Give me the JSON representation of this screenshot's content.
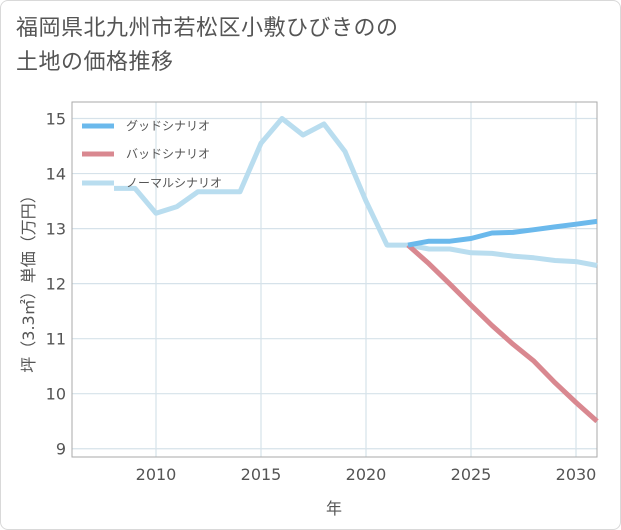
{
  "title": "福岡県北九州市若松区小敷ひびきのの\n土地の価格推移",
  "chart_data": {
    "type": "line",
    "title": "福岡県北九州市若松区小敷ひびきのの土地の価格推移",
    "xlabel": "年",
    "ylabel": "坪（3.3㎡）単価（万円）",
    "xlim": [
      2006,
      2031
    ],
    "ylim": [
      8.85,
      15.3
    ],
    "x_ticks": [
      2010,
      2015,
      2020,
      2025,
      2030
    ],
    "y_ticks": [
      9,
      10,
      11,
      12,
      13,
      14,
      15
    ],
    "grid": true,
    "legend_position": "top-left",
    "series": [
      {
        "name": "グッドシナリオ",
        "color": "#6bb9ec",
        "x": [
          2022,
          2023,
          2024,
          2025,
          2026,
          2027,
          2028,
          2029,
          2030,
          2031
        ],
        "values": [
          12.7,
          12.77,
          12.77,
          12.82,
          12.92,
          12.93,
          12.98,
          13.03,
          13.08,
          13.13
        ]
      },
      {
        "name": "バッドシナリオ",
        "color": "#d98890",
        "x": [
          2022,
          2023,
          2024,
          2025,
          2026,
          2027,
          2028,
          2029,
          2030,
          2031
        ],
        "values": [
          12.7,
          12.36,
          11.99,
          11.61,
          11.24,
          10.9,
          10.59,
          10.2,
          9.84,
          9.5
        ]
      },
      {
        "name": "ノーマルシナリオ",
        "color": "#b9ddef",
        "x": [
          2008,
          2009,
          2010,
          2011,
          2012,
          2013,
          2014,
          2015,
          2016,
          2017,
          2018,
          2019,
          2020,
          2021,
          2022,
          2023,
          2024,
          2025,
          2026,
          2027,
          2028,
          2029,
          2030,
          2031
        ],
        "values": [
          13.73,
          13.73,
          13.28,
          13.4,
          13.67,
          13.67,
          13.67,
          14.55,
          15.0,
          14.7,
          14.9,
          14.4,
          13.5,
          12.7,
          12.7,
          12.63,
          12.63,
          12.56,
          12.55,
          12.5,
          12.47,
          12.42,
          12.4,
          12.33
        ]
      }
    ]
  }
}
